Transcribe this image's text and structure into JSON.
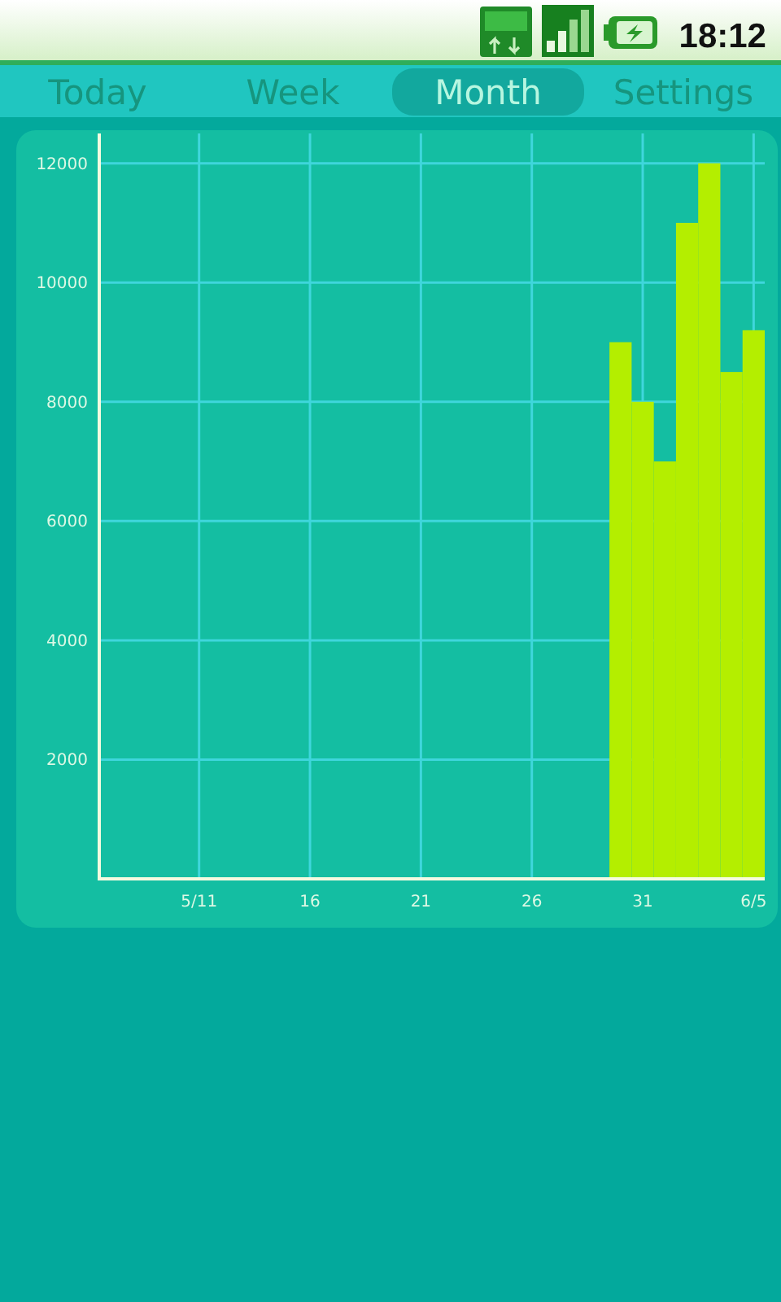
{
  "chart_data": {
    "type": "bar",
    "categories": [
      null,
      null,
      null,
      null,
      "5/11",
      null,
      null,
      null,
      null,
      "16",
      null,
      null,
      null,
      null,
      "21",
      null,
      null,
      null,
      null,
      "26",
      null,
      null,
      null,
      null,
      "31",
      null,
      null,
      null,
      null,
      "6/5"
    ],
    "values": [
      null,
      null,
      null,
      null,
      null,
      null,
      null,
      null,
      null,
      null,
      null,
      null,
      null,
      null,
      null,
      null,
      null,
      null,
      null,
      null,
      null,
      null,
      null,
      9000,
      8000,
      7000,
      11000,
      12000,
      8500,
      9200
    ],
    "color": "#b4ee00",
    "ylim": [
      0,
      12500
    ],
    "yticks": [
      2000,
      4000,
      6000,
      8000,
      10000,
      12000
    ],
    "grid": true,
    "annotations": [
      "18:12",
      "Today",
      "Week",
      "Month",
      "Settings"
    ]
  }
}
